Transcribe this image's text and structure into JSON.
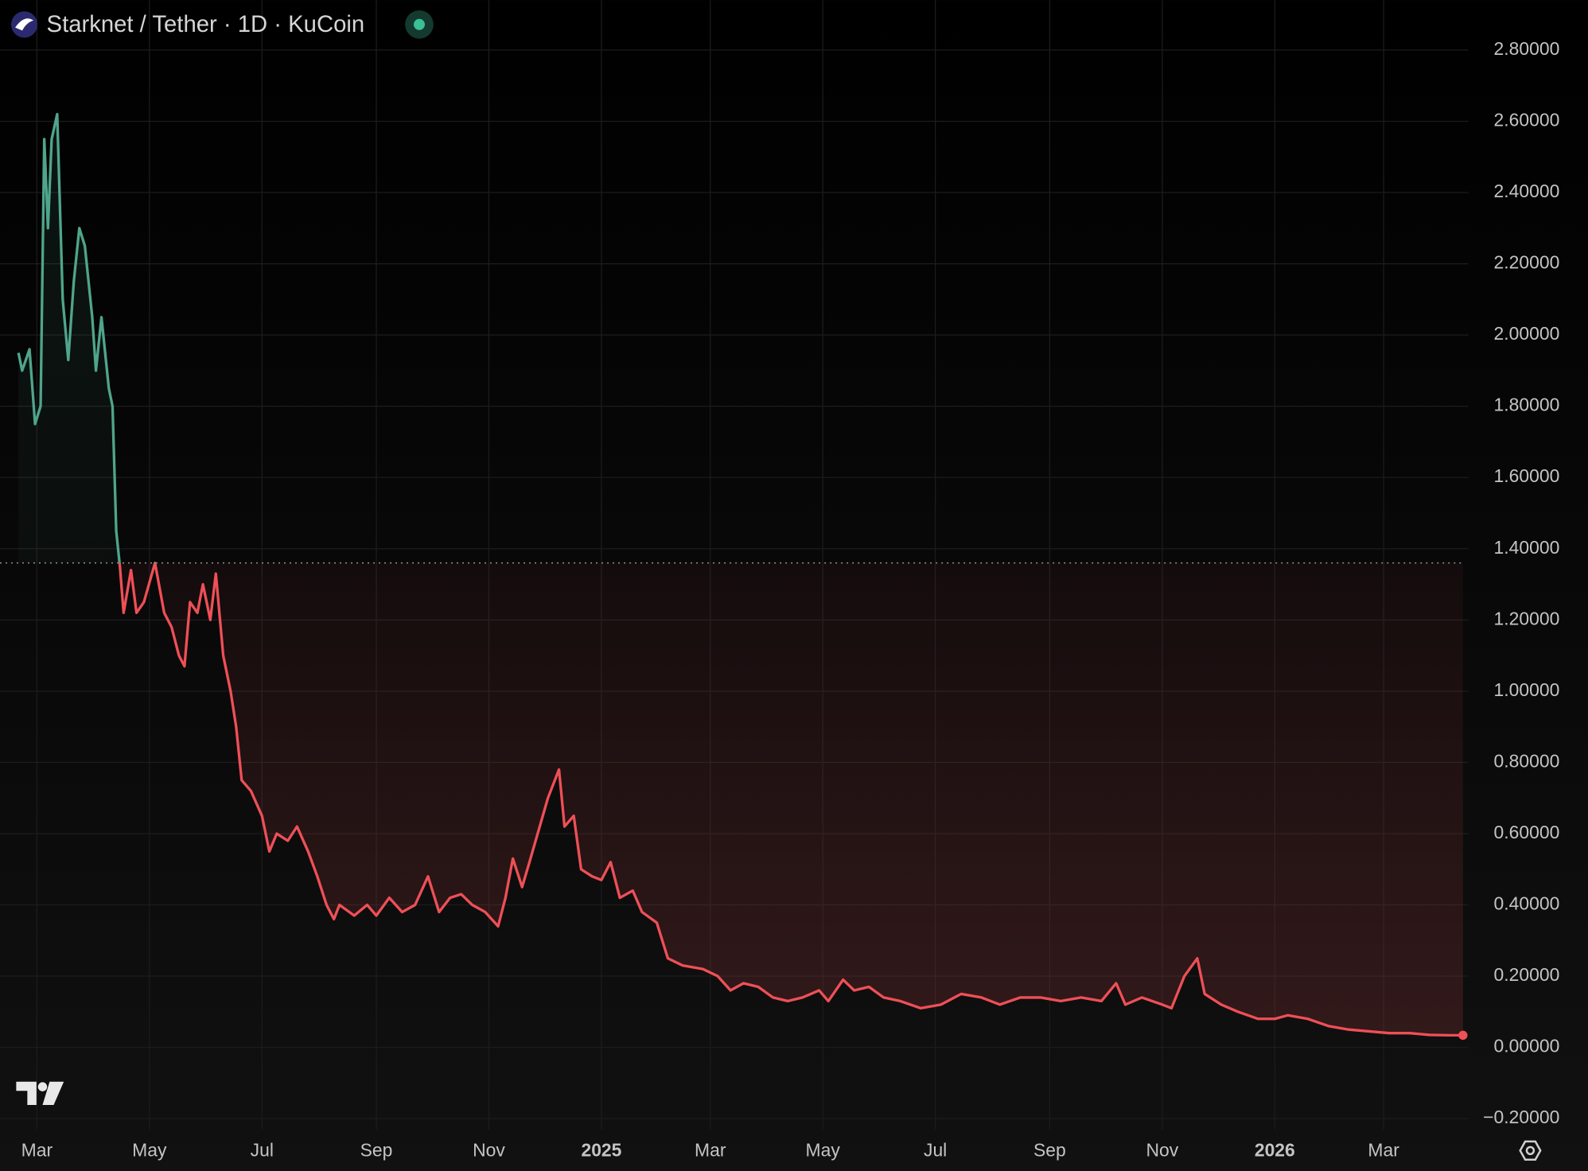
{
  "chart_data": {
    "type": "baseline",
    "title": "Starknet / Tether · 1D · KuCoin",
    "baseline": 1.36,
    "color_up": "#4fa58b",
    "color_down": "#ef4f57",
    "grid": true,
    "x": [
      "2024-02-20",
      "2024-02-22",
      "2024-02-26",
      "2024-02-29",
      "2024-03-03",
      "2024-03-05",
      "2024-03-07",
      "2024-03-09",
      "2024-03-12",
      "2024-03-15",
      "2024-03-18",
      "2024-03-21",
      "2024-03-24",
      "2024-03-27",
      "2024-03-31",
      "2024-04-02",
      "2024-04-05",
      "2024-04-09",
      "2024-04-11",
      "2024-04-13",
      "2024-04-15",
      "2024-04-17",
      "2024-04-21",
      "2024-04-24",
      "2024-04-28",
      "2024-05-04",
      "2024-05-09",
      "2024-05-13",
      "2024-05-17",
      "2024-05-20",
      "2024-05-23",
      "2024-05-27",
      "2024-05-30",
      "2024-06-03",
      "2024-06-06",
      "2024-06-10",
      "2024-06-14",
      "2024-06-17",
      "2024-06-20",
      "2024-06-25",
      "2024-07-01",
      "2024-07-05",
      "2024-07-09",
      "2024-07-15",
      "2024-07-20",
      "2024-07-26",
      "2024-07-31",
      "2024-08-05",
      "2024-08-09",
      "2024-08-12",
      "2024-08-20",
      "2024-08-27",
      "2024-09-01",
      "2024-09-08",
      "2024-09-15",
      "2024-09-22",
      "2024-09-29",
      "2024-10-05",
      "2024-10-11",
      "2024-10-17",
      "2024-10-23",
      "2024-10-30",
      "2024-11-06",
      "2024-11-10",
      "2024-11-14",
      "2024-11-19",
      "2024-11-23",
      "2024-11-28",
      "2024-12-03",
      "2024-12-09",
      "2024-12-12",
      "2024-12-17",
      "2024-12-21",
      "2024-12-27",
      "2025-01-01",
      "2025-01-06",
      "2025-01-11",
      "2025-01-18",
      "2025-01-23",
      "2025-01-31",
      "2025-02-06",
      "2025-02-14",
      "2025-02-25",
      "2025-03-05",
      "2025-03-12",
      "2025-03-19",
      "2025-03-27",
      "2025-04-04",
      "2025-04-12",
      "2025-04-20",
      "2025-04-29",
      "2025-05-04",
      "2025-05-12",
      "2025-05-18",
      "2025-05-26",
      "2025-06-03",
      "2025-06-12",
      "2025-06-23",
      "2025-07-04",
      "2025-07-15",
      "2025-07-26",
      "2025-08-05",
      "2025-08-16",
      "2025-08-27",
      "2025-09-07",
      "2025-09-18",
      "2025-09-29",
      "2025-10-07",
      "2025-10-12",
      "2025-10-21",
      "2025-11-01",
      "2025-11-06",
      "2025-11-13",
      "2025-11-20",
      "2025-11-24",
      "2025-12-03",
      "2025-12-12",
      "2025-12-23",
      "2026-01-01",
      "2026-01-08",
      "2026-01-19",
      "2026-01-30",
      "2026-02-10",
      "2026-02-21",
      "2026-03-04",
      "2026-03-15",
      "2026-03-26",
      "2026-04-06",
      "2026-04-13"
    ],
    "values": [
      1.95,
      1.9,
      1.96,
      1.75,
      1.8,
      2.55,
      2.3,
      2.55,
      2.62,
      2.1,
      1.93,
      2.15,
      2.3,
      2.25,
      2.05,
      1.9,
      2.05,
      1.85,
      1.8,
      1.45,
      1.35,
      1.22,
      1.34,
      1.22,
      1.25,
      1.36,
      1.22,
      1.18,
      1.1,
      1.07,
      1.25,
      1.22,
      1.3,
      1.2,
      1.33,
      1.1,
      1.0,
      0.9,
      0.75,
      0.72,
      0.65,
      0.55,
      0.6,
      0.58,
      0.62,
      0.55,
      0.48,
      0.4,
      0.36,
      0.4,
      0.37,
      0.4,
      0.37,
      0.42,
      0.38,
      0.4,
      0.48,
      0.38,
      0.42,
      0.43,
      0.4,
      0.38,
      0.34,
      0.42,
      0.53,
      0.45,
      0.52,
      0.61,
      0.7,
      0.78,
      0.62,
      0.65,
      0.5,
      0.48,
      0.47,
      0.52,
      0.42,
      0.44,
      0.38,
      0.35,
      0.25,
      0.23,
      0.22,
      0.2,
      0.16,
      0.18,
      0.17,
      0.14,
      0.13,
      0.14,
      0.16,
      0.13,
      0.19,
      0.16,
      0.17,
      0.14,
      0.13,
      0.11,
      0.12,
      0.15,
      0.14,
      0.12,
      0.14,
      0.14,
      0.13,
      0.14,
      0.13,
      0.18,
      0.12,
      0.14,
      0.12,
      0.11,
      0.2,
      0.25,
      0.15,
      0.12,
      0.1,
      0.08,
      0.08,
      0.09,
      0.08,
      0.06,
      0.05,
      0.045,
      0.04,
      0.04,
      0.035,
      0.034,
      0.034
    ],
    "xlim": [
      "2024-02-10",
      "2026-04-16"
    ],
    "xticks": [
      {
        "value": "2024-03-01",
        "label": "Mar"
      },
      {
        "value": "2024-05-01",
        "label": "May"
      },
      {
        "value": "2024-07-01",
        "label": "Jul"
      },
      {
        "value": "2024-09-01",
        "label": "Sep"
      },
      {
        "value": "2024-11-01",
        "label": "Nov"
      },
      {
        "value": "2025-01-01",
        "label": "2025"
      },
      {
        "value": "2025-03-01",
        "label": "Mar"
      },
      {
        "value": "2025-05-01",
        "label": "May"
      },
      {
        "value": "2025-07-01",
        "label": "Jul"
      },
      {
        "value": "2025-09-01",
        "label": "Sep"
      },
      {
        "value": "2025-11-01",
        "label": "Nov"
      },
      {
        "value": "2026-01-01",
        "label": "2026"
      },
      {
        "value": "2026-03-01",
        "label": "Mar"
      }
    ],
    "ylim": [
      -0.23,
      2.94
    ],
    "yticks": [
      {
        "value": 2.8,
        "label": "2.80000"
      },
      {
        "value": 2.6,
        "label": "2.60000"
      },
      {
        "value": 2.4,
        "label": "2.40000"
      },
      {
        "value": 2.2,
        "label": "2.20000"
      },
      {
        "value": 2.0,
        "label": "2.00000"
      },
      {
        "value": 1.8,
        "label": "1.80000"
      },
      {
        "value": 1.6,
        "label": "1.60000"
      },
      {
        "value": 1.4,
        "label": "1.40000"
      },
      {
        "value": 1.2,
        "label": "1.20000"
      },
      {
        "value": 1.0,
        "label": "1.00000"
      },
      {
        "value": 0.8,
        "label": "0.80000"
      },
      {
        "value": 0.6,
        "label": "0.60000"
      },
      {
        "value": 0.4,
        "label": "0.40000"
      },
      {
        "value": 0.2,
        "label": "0.20000"
      },
      {
        "value": 0,
        "label": "0.00000"
      },
      {
        "value": -0.2,
        "label": "−0.20000"
      }
    ]
  }
}
